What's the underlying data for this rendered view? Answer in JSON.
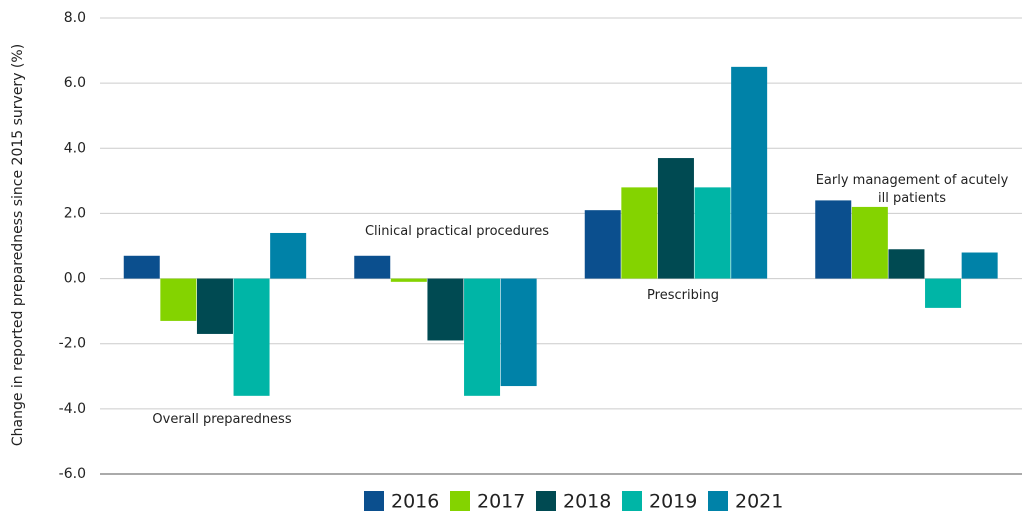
{
  "chart_data": {
    "type": "bar",
    "y_label": "Change in reported preparedness since 2015 survery (%)",
    "categories": [
      "Overall preparedness",
      "Clinical practical procedures",
      "Prescribing",
      "Early management of acutely ill patients"
    ],
    "series": [
      {
        "name": "2016",
        "color": "#0b4f8e",
        "values": [
          0.7,
          0.7,
          2.1,
          2.4
        ]
      },
      {
        "name": "2017",
        "color": "#84d300",
        "values": [
          -1.3,
          -0.1,
          2.8,
          2.2
        ]
      },
      {
        "name": "2018",
        "color": "#004a52",
        "values": [
          -1.7,
          -1.9,
          3.7,
          0.9
        ]
      },
      {
        "name": "2019",
        "color": "#00b5a6",
        "values": [
          -3.6,
          -3.6,
          2.8,
          -0.9
        ]
      },
      {
        "name": "2021",
        "color": "#0082a8",
        "values": [
          1.4,
          -3.3,
          6.5,
          0.8
        ]
      }
    ],
    "ylim": [
      -6,
      8
    ],
    "yticks": [
      {
        "value": -6,
        "label": "-6.0"
      },
      {
        "value": -4,
        "label": "-4.0"
      },
      {
        "value": -2,
        "label": "-2.0"
      },
      {
        "value": 0,
        "label": "0.0"
      },
      {
        "value": 2,
        "label": "2.0"
      },
      {
        "value": 4,
        "label": "4.0"
      },
      {
        "value": 6,
        "label": "6.0"
      },
      {
        "value": 8,
        "label": "8.0"
      }
    ],
    "grid": true
  }
}
